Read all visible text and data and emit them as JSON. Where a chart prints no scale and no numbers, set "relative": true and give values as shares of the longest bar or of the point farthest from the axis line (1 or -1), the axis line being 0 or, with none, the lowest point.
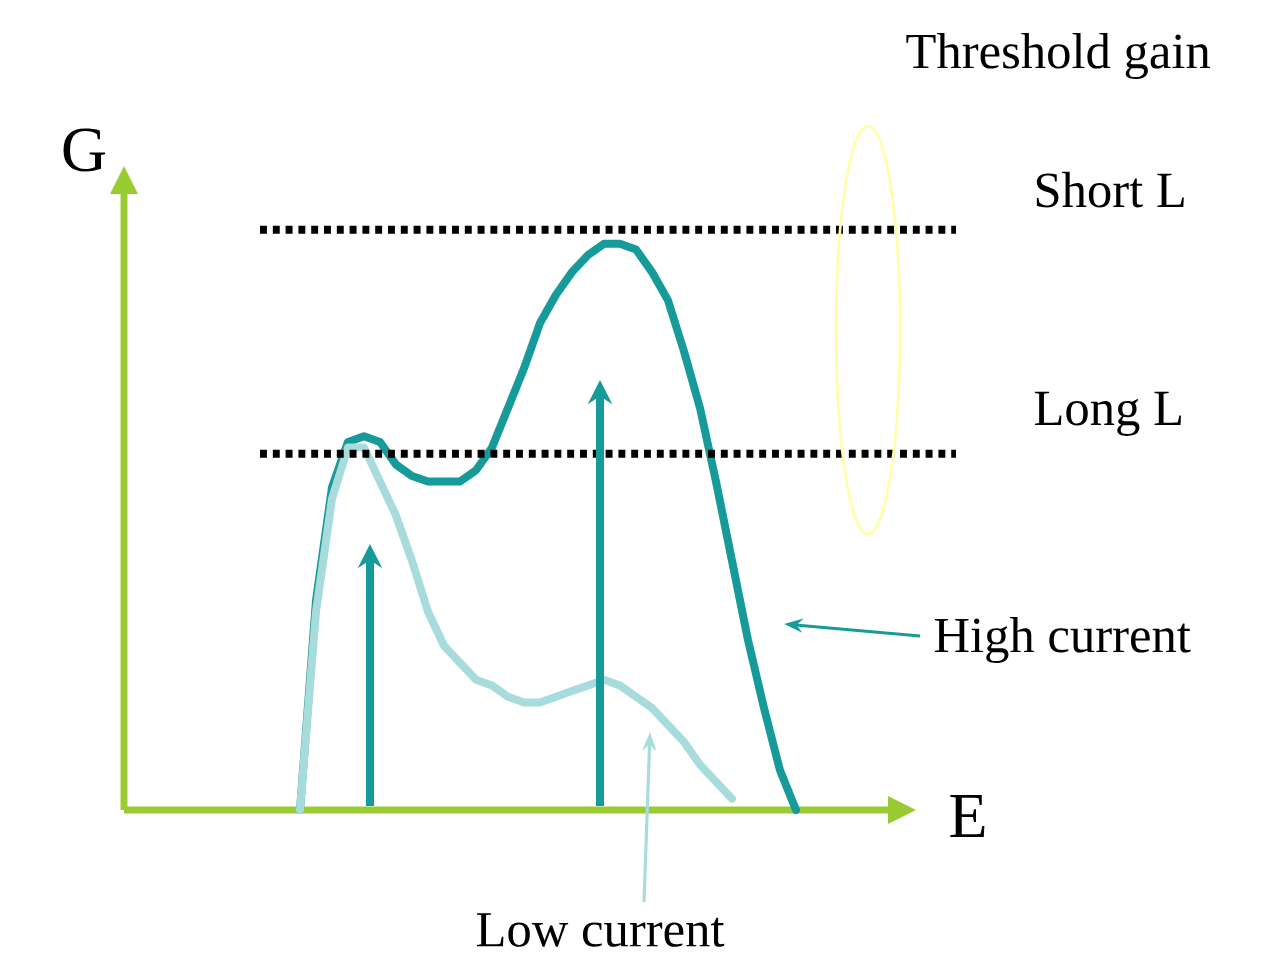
{
  "chart_data": {
    "type": "line",
    "relative": true,
    "xlabel": "E",
    "ylabel": "G",
    "categories": [
      null,
      null,
      null,
      null,
      null,
      null,
      null,
      null,
      null,
      null,
      null,
      null,
      null,
      null,
      null,
      null,
      null,
      null,
      null,
      null,
      null,
      null,
      null,
      null,
      null,
      null,
      null,
      null,
      null,
      null,
      null,
      null,
      null,
      null,
      null,
      null,
      null,
      null,
      null,
      null,
      null,
      null,
      null,
      null,
      null,
      null,
      null,
      null,
      null
    ],
    "series": [
      {
        "name": "High current",
        "color": "#169a9a",
        "values": [
          null,
          null,
          null,
          null,
          null,
          null,
          null,
          null,
          null,
          null,
          null,
          0,
          0.37,
          0.57,
          0.65,
          0.66,
          0.65,
          0.61,
          0.59,
          0.58,
          0.58,
          0.58,
          0.6,
          0.64,
          0.71,
          0.78,
          0.86,
          0.91,
          0.95,
          0.98,
          1.0,
          1.0,
          0.99,
          0.95,
          0.9,
          0.81,
          0.71,
          0.58,
          0.44,
          0.3,
          0.18,
          0.07,
          0,
          null,
          null,
          null,
          null,
          null,
          null
        ]
      },
      {
        "name": "Low current",
        "color": "#a8dcdc",
        "values": [
          null,
          null,
          null,
          null,
          null,
          null,
          null,
          null,
          null,
          null,
          null,
          0,
          0.35,
          0.55,
          0.64,
          0.64,
          0.58,
          0.52,
          0.44,
          0.35,
          0.29,
          0.26,
          0.23,
          0.22,
          0.2,
          0.19,
          0.19,
          0.2,
          0.21,
          0.22,
          0.23,
          0.22,
          0.2,
          0.18,
          0.15,
          0.12,
          0.08,
          0.05,
          0.02,
          null,
          null,
          null,
          null,
          null,
          null,
          null,
          null,
          null,
          null
        ]
      }
    ],
    "ref_lines": [
      {
        "axis": "y",
        "value": 1.025,
        "label": "Short L",
        "color": "#000000",
        "line_style": "dotted"
      },
      {
        "axis": "y",
        "value": 0.629,
        "label": "Long L",
        "color": "#000000",
        "line_style": "dotted"
      }
    ],
    "annotations": [
      "Threshold gain"
    ],
    "line_style": "solid"
  }
}
